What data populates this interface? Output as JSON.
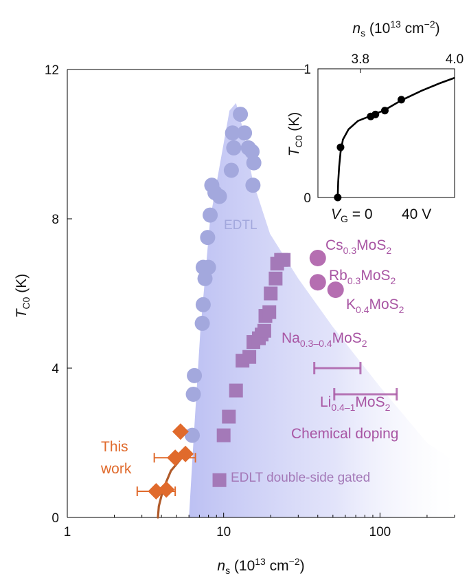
{
  "chart_data": [
    {
      "type": "scatter",
      "panel": "main",
      "xscale": "log",
      "xlim": [
        1,
        300
      ],
      "ylim": [
        0,
        12
      ],
      "xlabel": {
        "sym": "n",
        "sub": "s",
        "rest": " (10",
        "sup": "13",
        "tail": " cm",
        "sup2": "−2",
        "close": ")"
      },
      "ylabel": {
        "sym": "T",
        "sub": "C0",
        "rest": " (K)"
      },
      "xticks": [
        {
          "v": 1,
          "label": "1"
        },
        {
          "v": 10,
          "label": "10"
        },
        {
          "v": 100,
          "label": "100"
        }
      ],
      "yticks": [
        {
          "v": 0,
          "label": "0"
        },
        {
          "v": 4,
          "label": "4"
        },
        {
          "v": 8,
          "label": "8"
        },
        {
          "v": 12,
          "label": "12"
        }
      ],
      "colors": {
        "edtl": "#a3a8dd",
        "edlt_ds": "#a479b8",
        "chemical": "#a855a3",
        "this_work": "#e06a2c",
        "curve": "#b05a2a",
        "shade": "#c9ccf5"
      },
      "edtl_points": [
        [
          12.8,
          10.8
        ],
        [
          11.4,
          10.3
        ],
        [
          13.6,
          10.3
        ],
        [
          11.6,
          9.9
        ],
        [
          14.4,
          9.9
        ],
        [
          15.2,
          9.8
        ],
        [
          15.6,
          9.5
        ],
        [
          11.2,
          9.3
        ],
        [
          15.4,
          8.9
        ],
        [
          8.4,
          8.9
        ],
        [
          8.8,
          8.7
        ],
        [
          9.4,
          8.6
        ],
        [
          8.2,
          8.1
        ],
        [
          7.9,
          7.5
        ],
        [
          8.0,
          6.7
        ],
        [
          7.4,
          6.7
        ],
        [
          7.6,
          6.4
        ],
        [
          7.4,
          5.7
        ],
        [
          7.3,
          5.2
        ],
        [
          6.5,
          3.8
        ],
        [
          6.4,
          3.3
        ],
        [
          6.3,
          2.2
        ]
      ],
      "edlt_ds_points": [
        [
          9.4,
          1.0
        ],
        [
          10.0,
          2.2
        ],
        [
          10.8,
          2.7
        ],
        [
          12.0,
          3.4
        ],
        [
          13.2,
          4.2
        ],
        [
          14.6,
          4.3
        ],
        [
          15.5,
          4.7
        ],
        [
          16.8,
          4.8
        ],
        [
          17.5,
          4.9
        ],
        [
          18.2,
          5.0
        ],
        [
          18.5,
          5.4
        ],
        [
          19.6,
          5.5
        ],
        [
          20.0,
          6.0
        ],
        [
          21.5,
          6.4
        ],
        [
          22.0,
          6.8
        ],
        [
          23.3,
          6.9
        ],
        [
          24.2,
          6.9
        ]
      ],
      "chemical_circles": [
        [
          40,
          6.95
        ],
        [
          40,
          6.3
        ],
        [
          52,
          6.1
        ]
      ],
      "chemical_errorbars": [
        {
          "y": 4.0,
          "xmin": 38,
          "xmax": 75
        },
        {
          "y": 3.3,
          "xmin": 51,
          "xmax": 128
        }
      ],
      "this_work_points": [
        {
          "x": 5.3,
          "y": 2.3
        },
        {
          "x": 4.9,
          "y": 1.6,
          "xerr": [
            3.6,
            6.6
          ]
        },
        {
          "x": 5.7,
          "y": 1.7
        },
        {
          "x": 3.7,
          "y": 0.7,
          "xerr": [
            2.8,
            4.9
          ]
        },
        {
          "x": 4.3,
          "y": 0.75
        }
      ],
      "this_work_curve": [
        [
          3.8,
          0.0
        ],
        [
          3.85,
          0.3
        ],
        [
          4.1,
          0.75
        ],
        [
          4.6,
          1.25
        ],
        [
          5.4,
          1.6
        ],
        [
          6.0,
          1.75
        ]
      ],
      "shaded_region": {
        "left": [
          [
            6.0,
            0
          ],
          [
            6.4,
            2.0
          ],
          [
            7.1,
            5.0
          ],
          [
            8.2,
            8.0
          ],
          [
            9.6,
            9.6
          ],
          [
            10.9,
            10.9
          ],
          [
            12.0,
            11.1
          ]
        ],
        "right": [
          [
            12.0,
            11.1
          ],
          [
            13.1,
            10.5
          ],
          [
            15.4,
            9.0
          ],
          [
            19.8,
            7.6
          ],
          [
            30,
            6.4
          ],
          [
            50,
            5.1
          ],
          [
            100,
            3.5
          ],
          [
            200,
            2.0
          ],
          [
            300,
            1.5
          ],
          [
            300,
            0
          ]
        ]
      },
      "labels": {
        "edtl": "EDTL",
        "edlt_ds": "EDLT double-side gated",
        "chemical_doping": "Chemical doping",
        "this_work_line1": "This",
        "this_work_line2": "work",
        "cs": {
          "main": "Cs",
          "sub": "0.3",
          "rest": "MoS",
          "sub2": "2"
        },
        "rb": {
          "main": "Rb",
          "sub": "0.3",
          "rest": "MoS",
          "sub2": "2"
        },
        "k": {
          "main": "K",
          "sub": "0.4",
          "rest": "MoS",
          "sub2": "2"
        },
        "na": {
          "main": "Na",
          "sub": "0.3–0.4",
          "rest": "MoS",
          "sub2": "2"
        },
        "li": {
          "main": "Li",
          "sub": "0.4–1",
          "rest": "MoS",
          "sub2": "2"
        }
      }
    },
    {
      "type": "line",
      "panel": "inset",
      "xlim": [
        3.71,
        4.0
      ],
      "ylim": [
        0,
        1
      ],
      "top_axis_label": {
        "sym": "n",
        "sub": "s",
        "rest": " (10",
        "sup": "13",
        "tail": " cm",
        "sup2": "−2",
        "close": ")"
      },
      "top_ticks": [
        {
          "v": 3.8,
          "label": "3.8"
        },
        {
          "v": 4.0,
          "label": "4.0"
        }
      ],
      "ylabel": {
        "sym": "T",
        "sub": "C0",
        "rest": " (K)"
      },
      "yticks": [
        {
          "v": 0,
          "label": "0"
        },
        {
          "v": 1,
          "label": "1"
        }
      ],
      "bottom_labels": {
        "vg_sym": "V",
        "vg_sub": "G",
        "vg_rest": " = 0",
        "v40": "40 V"
      },
      "points": [
        [
          3.752,
          0.0
        ],
        [
          3.758,
          0.39
        ],
        [
          3.822,
          0.63
        ],
        [
          3.832,
          0.645
        ],
        [
          3.852,
          0.675
        ],
        [
          3.887,
          0.76
        ]
      ],
      "curve": [
        [
          3.752,
          0.0
        ],
        [
          3.753,
          0.12
        ],
        [
          3.755,
          0.24
        ],
        [
          3.758,
          0.35
        ],
        [
          3.763,
          0.45
        ],
        [
          3.775,
          0.53
        ],
        [
          3.795,
          0.595
        ],
        [
          3.822,
          0.635
        ],
        [
          3.852,
          0.68
        ],
        [
          3.887,
          0.755
        ],
        [
          3.93,
          0.83
        ],
        [
          3.97,
          0.89
        ],
        [
          4.0,
          0.93
        ]
      ]
    }
  ]
}
